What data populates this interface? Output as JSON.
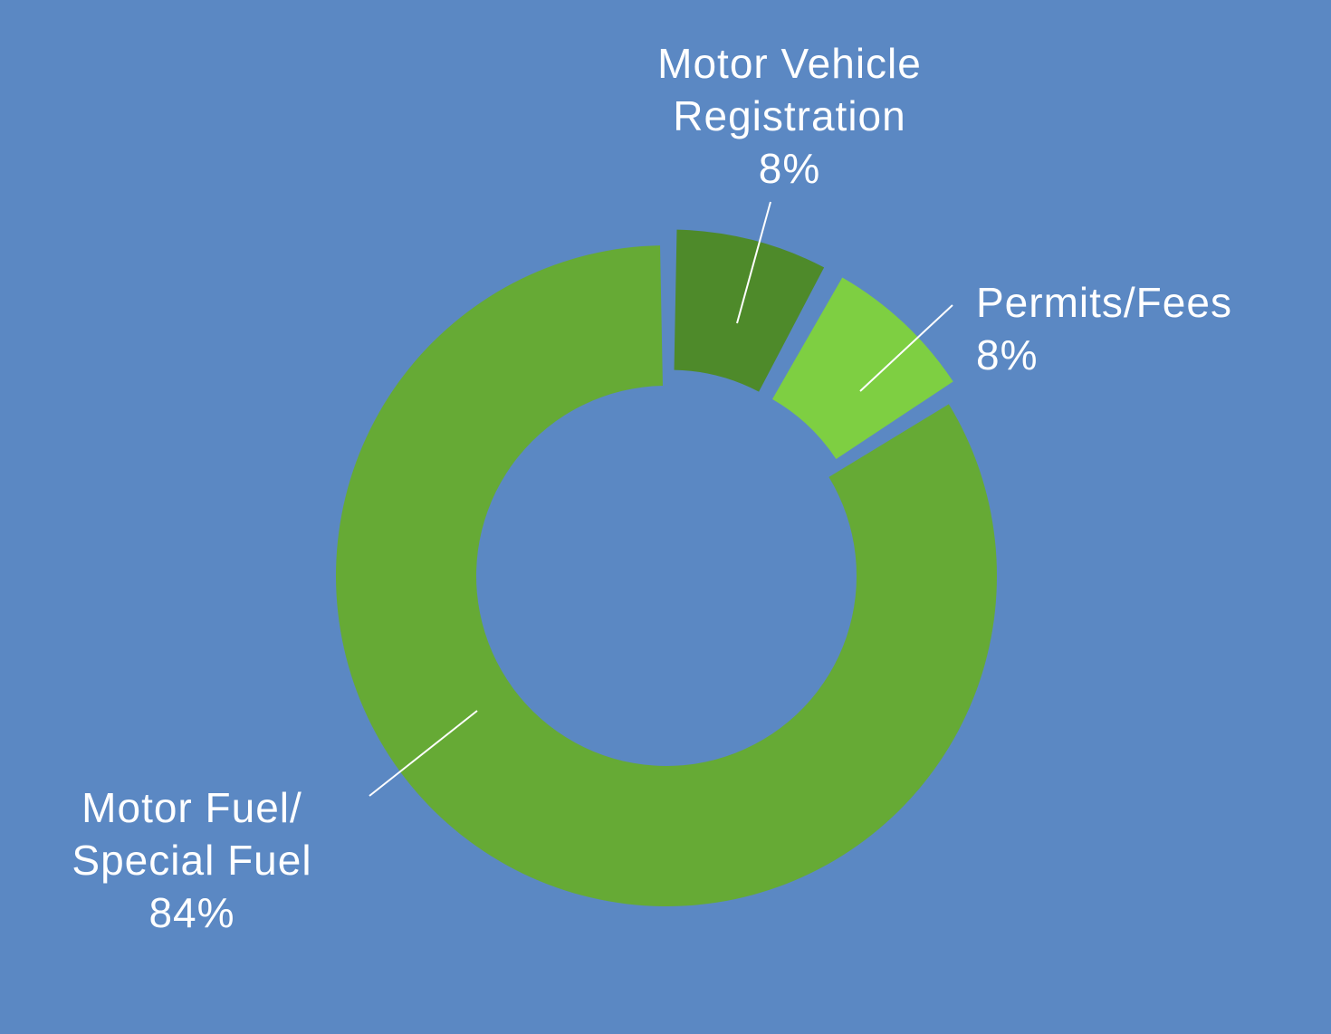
{
  "chart_data": {
    "type": "pie",
    "style": "donut",
    "legend": "none",
    "slices": [
      {
        "label_lines": [
          "Motor Vehicle",
          "Registration"
        ],
        "value_label": "8%",
        "value": 8,
        "color": "#4e8a2a"
      },
      {
        "label_lines": [
          "Permits/Fees"
        ],
        "value_label": "8%",
        "value": 8,
        "color": "#7ecf42"
      },
      {
        "label_lines": [
          "Motor Fuel/",
          "Special Fuel"
        ],
        "value_label": "84%",
        "value": 84,
        "color": "#66aa35"
      }
    ]
  }
}
